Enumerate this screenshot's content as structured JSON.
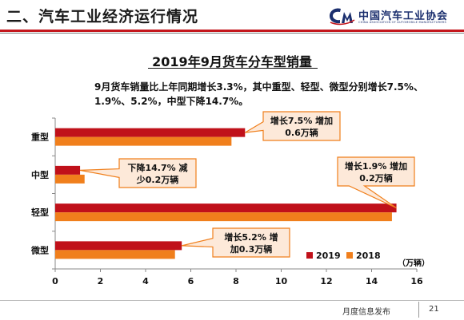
{
  "header": {
    "section_title": "二、汽车工业经济运行情况",
    "logo_text": "中国汽车工业协会",
    "logo_subtext": "CHINA ASSOCIATION OF AUTOMOBILE MANUFACTURERS"
  },
  "summary": "9月货车销量比上年同期增长3.3%，其中重型、轻型、微型分别增长7.5%、1.9%、5.2%，中型下降14.7%。",
  "footer": {
    "label": "月度信息发布",
    "page": "21"
  },
  "colors": {
    "accent": "#c4161c",
    "series_2019": "#c0111a",
    "series_2018": "#f07f1c",
    "callout_fill": "#fde9d9",
    "callout_border": "#f07f1c"
  },
  "chart_data": {
    "type": "bar",
    "orientation": "horizontal",
    "title": "2019年9月货车分车型销量",
    "unit": "（万辆）",
    "categories": [
      "重型",
      "中型",
      "轻型",
      "微型"
    ],
    "series": [
      {
        "name": "2019",
        "values": [
          8.4,
          1.1,
          15.1,
          5.6
        ]
      },
      {
        "name": "2018",
        "values": [
          7.8,
          1.3,
          14.9,
          5.3
        ]
      }
    ],
    "xlim": [
      0,
      16
    ],
    "xticks": [
      "0",
      "2",
      "4",
      "6",
      "8",
      "10",
      "12",
      "14",
      "16"
    ],
    "legend_position": "bottom-right",
    "grid": false,
    "annotations": [
      {
        "category": "重型",
        "lines": [
          "增长7.5% 增加",
          "0.6万辆"
        ]
      },
      {
        "category": "中型",
        "lines": [
          "下降14.7% 减",
          "少0.2万辆"
        ]
      },
      {
        "category": "轻型",
        "lines": [
          "增长1.9% 增加",
          "0.2万辆"
        ]
      },
      {
        "category": "微型",
        "lines": [
          "增长5.2% 增",
          "加0.3万辆"
        ]
      }
    ]
  }
}
